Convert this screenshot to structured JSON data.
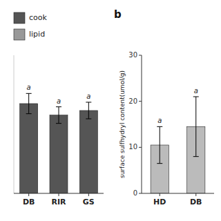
{
  "chart_data": [
    {
      "type": "bar",
      "categories": [
        "DB",
        "RIR",
        "GS"
      ],
      "series": [
        {
          "name": "cook",
          "color": "#555555",
          "values": [
            19.5,
            17.0,
            18.0
          ],
          "errors": [
            2.2,
            1.8,
            1.8
          ]
        },
        {
          "name": "lipid",
          "color": "#999999",
          "values": [
            null,
            null,
            null
          ]
        }
      ],
      "annotations": [
        "a",
        "a",
        "a"
      ],
      "ylim": [
        0,
        30
      ],
      "tick_labels": "x",
      "legend": "upper left"
    },
    {
      "type": "bar",
      "title": "b",
      "categories": [
        "HD",
        "DB"
      ],
      "values": [
        10.5,
        14.5
      ],
      "errors": [
        4.0,
        6.5
      ],
      "color": "#bbbbbb",
      "annotations": [
        "a",
        "a"
      ],
      "ylabel": "surface sulfhydryl content(umol/g)",
      "ylim": [
        0,
        30
      ],
      "yticks": [
        0,
        10,
        20,
        30
      ]
    }
  ]
}
